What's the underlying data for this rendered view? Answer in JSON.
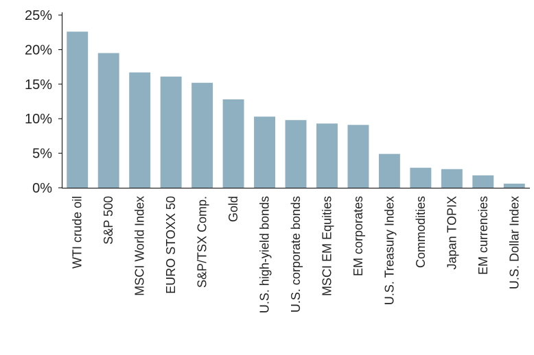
{
  "chart_data": {
    "type": "bar",
    "title": "",
    "xlabel": "",
    "ylabel": "",
    "ylim": [
      0,
      25
    ],
    "yticks": [
      0,
      5,
      10,
      15,
      20,
      25
    ],
    "ytick_labels": [
      "0%",
      "5%",
      "10%",
      "15%",
      "20%",
      "25%"
    ],
    "grid": false,
    "bar_color": "#8fb0c0",
    "categories": [
      "WTI crude oil",
      "S&P 500",
      "MSCI World Index",
      "EURO STOXX 50",
      "S&P/TSX Comp.",
      "Gold",
      "U.S. high-yield bonds",
      "U.S. corporate bonds",
      "MSCI EM Equities",
      "EM corporates",
      "U.S. Treasury Index",
      "Commodities",
      "Japan TOPIX",
      "EM currencies",
      "U.S. Dollar Index"
    ],
    "values": [
      22.6,
      19.5,
      16.7,
      16.1,
      15.2,
      12.8,
      10.3,
      9.8,
      9.3,
      9.1,
      4.9,
      2.9,
      2.7,
      1.8,
      0.6
    ]
  }
}
